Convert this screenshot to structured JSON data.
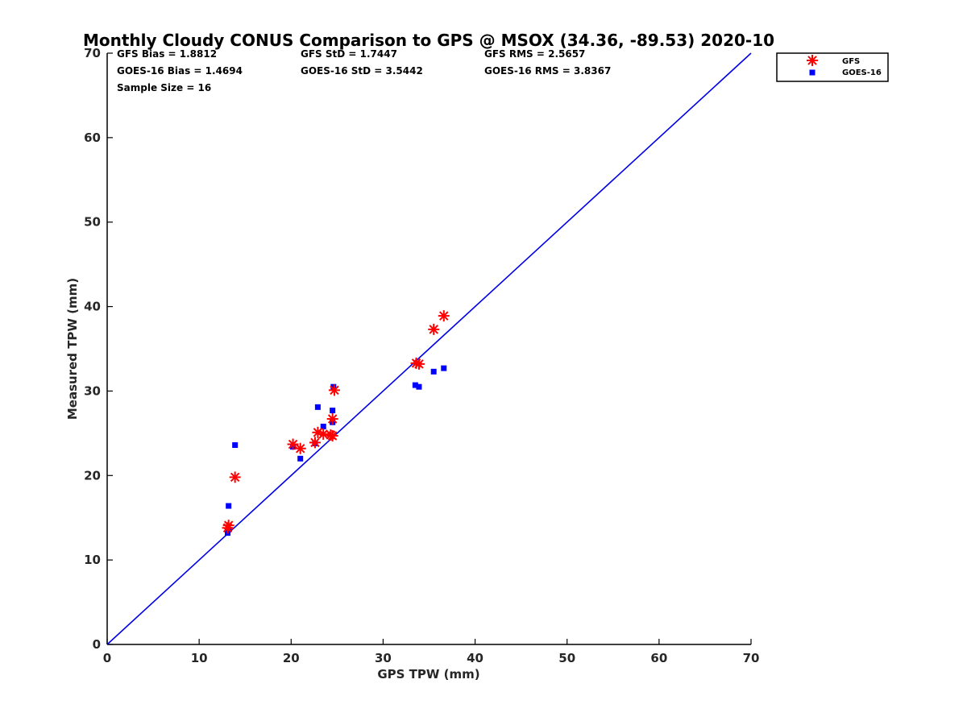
{
  "chart_data": {
    "type": "scatter",
    "title": "Monthly Cloudy CONUS Comparison to GPS @ MSOX (34.36, -89.53) 2020-10",
    "xlabel": "GPS TPW (mm)",
    "ylabel": "Measured TPW (mm)",
    "xlim": [
      0,
      70
    ],
    "ylim": [
      0,
      70
    ],
    "xticks": [
      "0",
      "10",
      "20",
      "30",
      "40",
      "50",
      "60",
      "70"
    ],
    "yticks": [
      "0",
      "10",
      "20",
      "30",
      "40",
      "50",
      "60",
      "70"
    ],
    "grid": false,
    "legend_position": "top-right outside",
    "reference_line": {
      "x": [
        0,
        70
      ],
      "y": [
        0,
        70
      ],
      "color": "#0000e6"
    },
    "stats": {
      "gfs_bias": "GFS Bias = 1.8812",
      "gfs_std": "GFS StD = 1.7447",
      "gfs_rms": "GFS RMS = 2.5657",
      "goes_bias": "GOES-16 Bias = 1.4694",
      "goes_std": "GOES-16 StD = 3.5442",
      "goes_rms": "GOES-16 RMS = 3.8367",
      "sample_size": "Sample Size = 16"
    },
    "series": [
      {
        "name": "GFS",
        "marker": "asterisk",
        "color": "#ff0000",
        "points": [
          [
            13.2,
            14.1
          ],
          [
            13.9,
            19.8
          ],
          [
            20.2,
            23.7
          ],
          [
            21.0,
            23.2
          ],
          [
            22.6,
            23.9
          ],
          [
            22.9,
            25.1
          ],
          [
            23.5,
            24.9
          ],
          [
            24.5,
            24.7
          ],
          [
            24.5,
            26.7
          ],
          [
            24.7,
            30.1
          ],
          [
            33.6,
            33.3
          ],
          [
            33.9,
            33.2
          ],
          [
            35.5,
            37.3
          ],
          [
            36.6,
            38.9
          ],
          [
            13.1,
            13.8
          ],
          [
            24.3,
            24.8
          ]
        ]
      },
      {
        "name": "GOES-16",
        "marker": "square",
        "color": "#0000ff",
        "points": [
          [
            13.1,
            13.2
          ],
          [
            13.2,
            16.4
          ],
          [
            13.2,
            13.6
          ],
          [
            13.9,
            23.6
          ],
          [
            20.2,
            23.4
          ],
          [
            21.0,
            22.0
          ],
          [
            22.6,
            23.8
          ],
          [
            22.9,
            28.1
          ],
          [
            23.5,
            25.8
          ],
          [
            24.5,
            26.3
          ],
          [
            24.5,
            27.7
          ],
          [
            24.6,
            30.5
          ],
          [
            33.5,
            30.7
          ],
          [
            33.9,
            30.5
          ],
          [
            35.5,
            32.3
          ],
          [
            36.6,
            32.7
          ]
        ]
      }
    ]
  }
}
